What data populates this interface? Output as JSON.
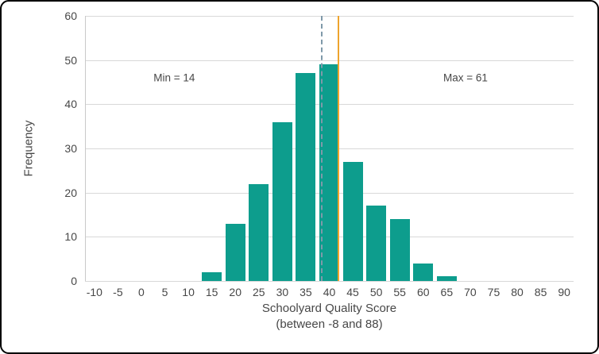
{
  "chart_data": {
    "type": "bar",
    "title": "",
    "ylabel": "Frequency",
    "xlabel_lines": [
      "Schoolyard Quality Score",
      "(between -8 and 88)"
    ],
    "categories": [
      15,
      20,
      25,
      30,
      35,
      40,
      45,
      50,
      55,
      60,
      65
    ],
    "values": [
      2,
      13,
      22,
      36,
      47,
      49,
      27,
      17,
      14,
      4,
      1
    ],
    "bin_width": 5,
    "xlim": [
      -12,
      92
    ],
    "ylim": [
      0,
      60
    ],
    "x_ticks": [
      -10,
      -5,
      0,
      5,
      10,
      15,
      20,
      25,
      30,
      35,
      40,
      45,
      50,
      55,
      60,
      65,
      70,
      75,
      80,
      85,
      90
    ],
    "y_ticks": [
      0,
      10,
      20,
      30,
      40,
      50,
      60
    ],
    "grid": "horizontal",
    "legend": "none",
    "bar_color": "#0d9d8d",
    "grid_color": "#d8d8d8",
    "text_color": "#474747",
    "annotations": [
      {
        "id": "min",
        "text": "Min = 14",
        "x": 7,
        "y": 46
      },
      {
        "id": "max",
        "text": "Max = 61",
        "x": 69,
        "y": 46
      }
    ],
    "reference_lines": [
      {
        "id": "dashed-reference-line",
        "x": 38.4,
        "style": "dashed",
        "color": "#7f99a9"
      },
      {
        "id": "orange-reference-line",
        "x": 41.9,
        "style": "solid",
        "color": "#eea42d"
      }
    ]
  }
}
